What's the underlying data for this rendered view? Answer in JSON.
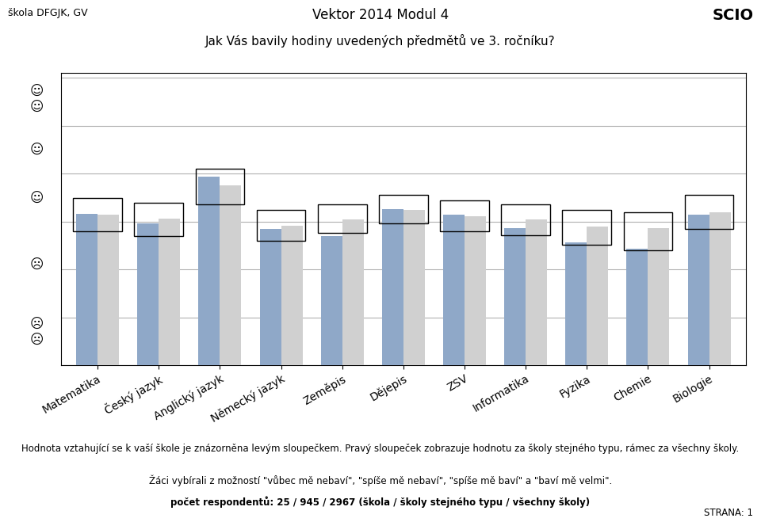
{
  "chart_data": {
    "type": "bar",
    "title": "Vektor 2014 Modul 4",
    "subtitle": "Jak Vás bavily hodiny uvedených předmětů ve 3. ročníku?",
    "categories": [
      "Matematika",
      "Český jazyk",
      "Anglický jazyk",
      "Německý jazyk",
      "Zeměpis",
      "Dějepis",
      "ZSV",
      "Informatika",
      "Fyzika",
      "Chemie",
      "Biologie"
    ],
    "series": [
      {
        "color": "#8fa8c8",
        "values": [
          2.58,
          2.48,
          2.97,
          2.42,
          2.35,
          2.63,
          2.57,
          2.43,
          2.28,
          2.22,
          2.57
        ]
      },
      {
        "color": "#d0d0d0",
        "values": [
          2.57,
          2.53,
          2.88,
          2.46,
          2.52,
          2.62,
          2.56,
          2.52,
          2.45,
          2.43,
          2.6
        ]
      }
    ],
    "frame_min": [
      2.4,
      2.35,
      2.68,
      2.3,
      2.38,
      2.48,
      2.4,
      2.36,
      2.26,
      2.2,
      2.42
    ],
    "frame_max": [
      2.75,
      2.7,
      3.05,
      2.62,
      2.68,
      2.78,
      2.72,
      2.68,
      2.62,
      2.6,
      2.78
    ],
    "ylim": [
      1.0,
      4.05
    ],
    "yticks": [
      1.0,
      1.5,
      2.0,
      2.5,
      3.0,
      3.5,
      4.0
    ],
    "tick_labels": "x",
    "grid": true,
    "annotations": [
      {
        "text": "☺\n☺",
        "y": 3.78
      },
      {
        "text": "☺",
        "y": 3.25
      },
      {
        "text": "☺",
        "y": 2.75
      },
      {
        "text": "☹",
        "y": 2.05
      },
      {
        "text": "☹\n☹",
        "y": 1.35
      },
      {
        "text": "škola DFGJK, GV"
      },
      {
        "text": "SCIO"
      },
      {
        "text": "STRANA: 1"
      }
    ],
    "footnotes": [
      "Hodnota vztahující se k vaší škole je znázorněna levým sloupečkem. Pravý sloupeček zobrazuje hodnotu za školy stejného typu, rámec za všechny školy.",
      "Žáci vybírali z možností \"vůbec mě nebaví\", \"spíše mě nebaví\", \"spíše mě baví\" a \"baví mě velmi\".",
      "počet respondentů: 25 / 945 / 2967 (škola / školy stejného typu / všechny školy)"
    ]
  }
}
